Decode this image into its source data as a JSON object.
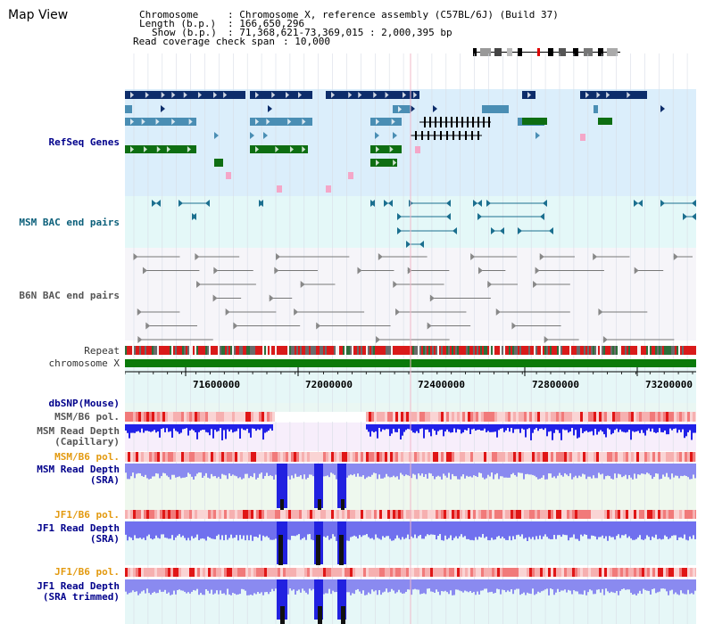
{
  "header": {
    "title": "Map View",
    "chromosome_key": "Chromosome",
    "chromosome_value": ": Chromosome X, reference assembly (C57BL/6J) (Build 37)",
    "length_key": "Length (b.p.)",
    "length_value": ": 166,650,296",
    "show_key": "Show (b.p.)",
    "show_value": ": 71,368,621-73,369,015 : 2,000,395 bp",
    "coverage_key": "Read coverage check span",
    "coverage_value": ": 10,000"
  },
  "tracks": {
    "refseq": "RefSeq Genes",
    "msm_bac": "MSM BAC end pairs",
    "b6n_bac": "B6N BAC end pairs",
    "repeat": "Repeat",
    "chromosome": "chromosome X",
    "dbsnp": "dbSNP(Mouse)",
    "msm_b6_pol_1": "MSM/B6 pol.",
    "msm_depth_cap_1": "MSM Read Depth",
    "msm_depth_cap_2": "(Capillary)",
    "msm_b6_pol_2": "MSM/B6 pol.",
    "msm_depth_sra_1": "MSM Read Depth",
    "msm_depth_sra_2": "(SRA)",
    "jf1_b6_pol_1": "JF1/B6 pol.",
    "jf1_depth_sra_1": "JF1 Read Depth",
    "jf1_depth_sra_2": "(SRA)",
    "jf1_b6_pol_2": "JF1/B6 pol.",
    "jf1_depth_trim_1": "JF1 Read Depth",
    "jf1_depth_trim_2": "(SRA trimmed)"
  },
  "axis": {
    "ticks": [
      "71600000",
      "72000000",
      "72400000",
      "72800000",
      "73200000"
    ]
  },
  "colors": {
    "refseq_bg": "#dbeefb",
    "msm_bac_bg": "#e4f8f8",
    "b6n_bac_bg": "#f5f5f8",
    "depth_bg": "#eef8ee",
    "cap_bg": "#f7eefb",
    "gene_dark": "#0d2d6b",
    "gene_mid": "#4a8eb4",
    "gene_green": "#0e6e12",
    "chrom_green": "#0a7a0a",
    "depth_blue": "#1c1cf0",
    "depth_light": "#7c7cf2"
  }
}
